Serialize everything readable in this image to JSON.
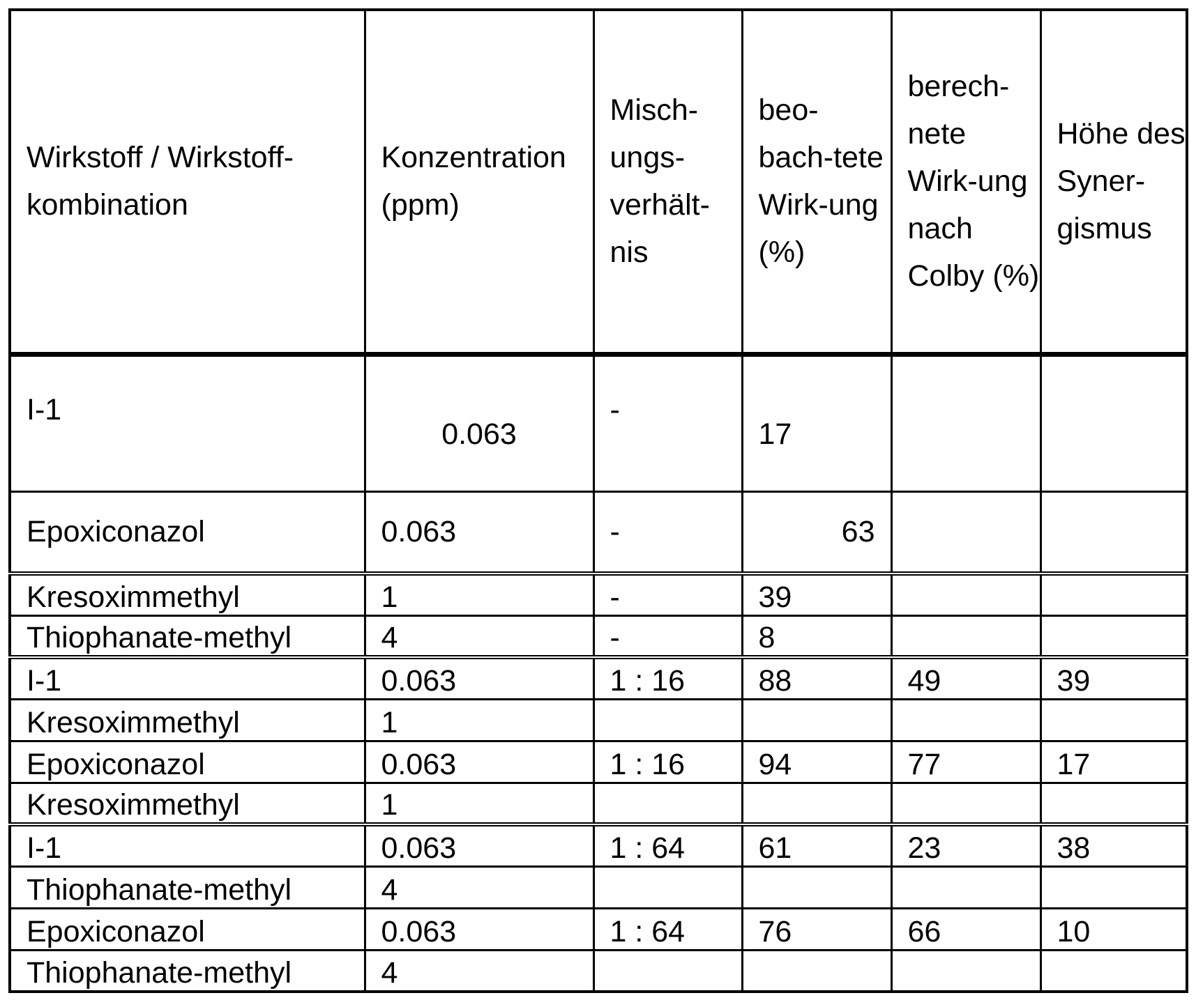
{
  "headers": [
    "Wirkstoff / Wirkstoff-kombination",
    "Konzentration (ppm)",
    "Misch-ungs-verhält-nis",
    "beo-bach-tete Wirk-ung (%)",
    "berech-nete Wirk-ung nach Colby (%)",
    "Höhe des Syner-gismus"
  ],
  "rows": [
    [
      "I-1",
      "0.063",
      "-",
      "17",
      "",
      ""
    ],
    [
      "Epoxiconazol",
      "0.063",
      "-",
      "63",
      "",
      ""
    ],
    [
      "Kresoximmethyl",
      "1",
      "-",
      "39",
      "",
      ""
    ],
    [
      "Thiophanate-methyl",
      "4",
      "-",
      "8",
      "",
      ""
    ],
    [
      "I-1",
      "0.063",
      "1 : 16",
      "88",
      "49",
      "39"
    ],
    [
      "Kresoximmethyl",
      "1",
      "",
      "",
      "",
      ""
    ],
    [
      "Epoxiconazol",
      "0.063",
      "1 : 16",
      "94",
      "77",
      "17"
    ],
    [
      "Kresoximmethyl",
      "1",
      "",
      "",
      "",
      ""
    ],
    [
      "I-1",
      "0.063",
      "1 : 64",
      "61",
      "23",
      "38"
    ],
    [
      "Thiophanate-methyl",
      "4",
      "",
      "",
      "",
      ""
    ],
    [
      "Epoxiconazol",
      "0.063",
      "1 : 64",
      "76",
      "66",
      "10"
    ],
    [
      "Thiophanate-methyl",
      "4",
      "",
      "",
      "",
      ""
    ]
  ]
}
